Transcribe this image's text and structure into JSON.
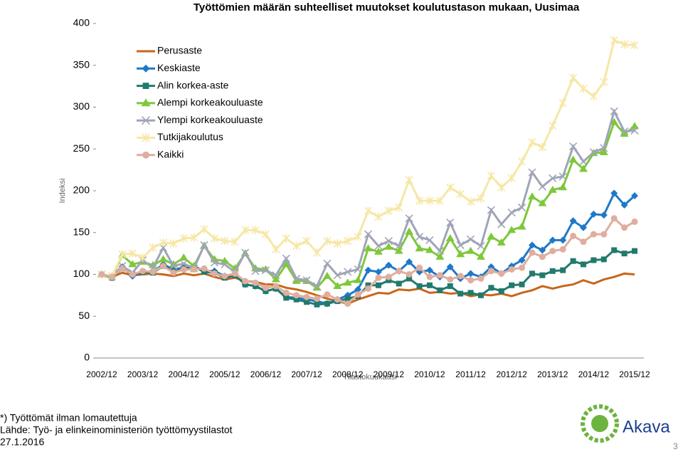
{
  "chart_data": {
    "type": "line",
    "title": "Työttömien määrän suhteelliset muutokset koulutustason mukaan, Uusimaa",
    "xlabel": "Tilastokuukausi",
    "ylabel": "Indeksi",
    "categories": [
      "2002/12",
      null,
      null,
      null,
      "2003/12",
      null,
      null,
      null,
      "2004/12",
      null,
      null,
      null,
      "2005/12",
      null,
      null,
      null,
      "2006/12",
      null,
      null,
      null,
      "2007/12",
      null,
      null,
      null,
      "2008/12",
      null,
      null,
      null,
      "2009/12",
      null,
      null,
      null,
      "2010/12",
      null,
      null,
      null,
      "2011/12",
      null,
      null,
      null,
      "2012/12",
      null,
      null,
      null,
      "2013/12",
      null,
      null,
      null,
      "2014/12",
      null,
      null,
      null,
      "2015/12"
    ],
    "ylim": [
      0,
      400
    ],
    "yticks": [
      0,
      50,
      100,
      150,
      200,
      250,
      300,
      350,
      400
    ],
    "grid": false,
    "legend": "upper left",
    "series": [
      {
        "name": "Perusaste",
        "color": "#c8661a",
        "marker": "none",
        "values": [
          100,
          97,
          102,
          99,
          100,
          101,
          100,
          98,
          101,
          99,
          101,
          97,
          94,
          96,
          92,
          91,
          88,
          88,
          84,
          82,
          79,
          75,
          71,
          68,
          65,
          70,
          74,
          78,
          77,
          82,
          81,
          83,
          78,
          79,
          77,
          78,
          74,
          76,
          75,
          77,
          74,
          78,
          81,
          86,
          83,
          86,
          88,
          93,
          89,
          94,
          97,
          101,
          100
        ]
      },
      {
        "name": "Keskiaste",
        "color": "#1f78c8",
        "marker": "diamond",
        "values": [
          100,
          96,
          109,
          98,
          103,
          103,
          112,
          106,
          108,
          110,
          104,
          104,
          98,
          101,
          88,
          86,
          80,
          83,
          73,
          72,
          70,
          68,
          65,
          70,
          75,
          82,
          105,
          103,
          111,
          104,
          115,
          103,
          105,
          97,
          109,
          95,
          101,
          97,
          109,
          101,
          110,
          117,
          135,
          129,
          141,
          141,
          164,
          156,
          172,
          171,
          197,
          183,
          194
        ]
      },
      {
        "name": "Alin korkea-aste",
        "color": "#217a6d",
        "marker": "square",
        "values": [
          100,
          96,
          107,
          100,
          103,
          102,
          110,
          104,
          107,
          109,
          103,
          102,
          96,
          99,
          88,
          86,
          80,
          83,
          72,
          70,
          67,
          64,
          65,
          68,
          71,
          74,
          87,
          87,
          93,
          89,
          95,
          86,
          87,
          81,
          86,
          77,
          78,
          75,
          84,
          80,
          87,
          88,
          101,
          99,
          104,
          105,
          116,
          112,
          117,
          118,
          129,
          125,
          128
        ]
      },
      {
        "name": "Alempi korkeakouluaste",
        "color": "#7ec83a",
        "marker": "triangle",
        "values": [
          100,
          97,
          123,
          112,
          115,
          111,
          118,
          112,
          120,
          110,
          134,
          118,
          116,
          107,
          125,
          107,
          106,
          94,
          112,
          92,
          92,
          84,
          98,
          86,
          90,
          93,
          131,
          127,
          133,
          128,
          151,
          131,
          129,
          121,
          143,
          124,
          128,
          121,
          145,
          138,
          153,
          157,
          193,
          185,
          201,
          204,
          237,
          226,
          245,
          246,
          282,
          268,
          277
        ]
      },
      {
        "name": "Ylempi korkeakouluaste",
        "color": "#a0a4b8",
        "marker": "x",
        "values": [
          100,
          98,
          110,
          102,
          117,
          108,
          132,
          110,
          113,
          107,
          135,
          114,
          112,
          103,
          126,
          104,
          105,
          99,
          119,
          95,
          93,
          86,
          113,
          99,
          103,
          106,
          148,
          134,
          140,
          134,
          167,
          145,
          141,
          128,
          162,
          135,
          142,
          134,
          177,
          160,
          174,
          180,
          222,
          205,
          215,
          217,
          253,
          235,
          246,
          251,
          295,
          271,
          272
        ]
      },
      {
        "name": "Tutkijakoulutus",
        "color": "#f6e7a6",
        "marker": "star",
        "values": [
          100,
          98,
          124,
          125,
          120,
          132,
          138,
          137,
          143,
          144,
          154,
          143,
          140,
          139,
          153,
          153,
          148,
          130,
          143,
          134,
          140,
          126,
          140,
          137,
          140,
          145,
          176,
          169,
          176,
          180,
          213,
          188,
          188,
          188,
          204,
          196,
          187,
          191,
          218,
          204,
          215,
          235,
          258,
          252,
          278,
          305,
          335,
          322,
          313,
          330,
          380,
          375,
          374
        ]
      },
      {
        "name": "Kaikki",
        "color": "#dfae9e",
        "marker": "circle",
        "values": [
          100,
          97,
          107,
          100,
          104,
          103,
          110,
          102,
          106,
          106,
          107,
          101,
          98,
          101,
          92,
          90,
          84,
          86,
          78,
          75,
          73,
          71,
          76,
          70,
          65,
          76,
          83,
          96,
          97,
          104,
          100,
          108,
          97,
          99,
          94,
          98,
          93,
          95,
          104,
          101,
          106,
          108,
          126,
          121,
          128,
          130,
          146,
          139,
          148,
          148,
          167,
          156,
          163
        ]
      }
    ]
  },
  "footer": {
    "note": "*) Työttömät ilman lomautettuja",
    "source": "Lähde: Työ- ja elinkeinoministeriön työttömyystilastot",
    "date": "27.1.2016",
    "page": "3",
    "logo": "Akava"
  }
}
